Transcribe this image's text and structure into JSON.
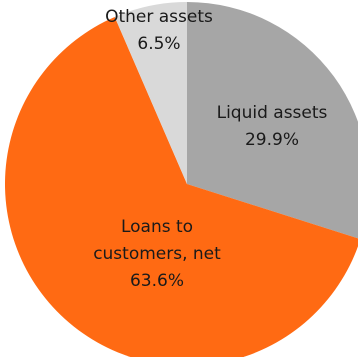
{
  "chart_data": {
    "type": "pie",
    "categories": [
      "Liquid assets",
      "Loans to customers, net",
      "Other assets"
    ],
    "values": [
      29.9,
      63.6,
      6.5
    ],
    "display_values": [
      "29.9%",
      "63.6%",
      "6.5%"
    ],
    "label_lines": [
      [
        "Liquid assets"
      ],
      [
        "Loans to",
        "customers, net"
      ],
      [
        "Other assets"
      ]
    ],
    "colors": [
      "#a6a6a6",
      "#ff6a13",
      "#d9d9d9"
    ],
    "start": "12 o'clock",
    "direction": "clockwise",
    "title": "",
    "legend": "none"
  }
}
